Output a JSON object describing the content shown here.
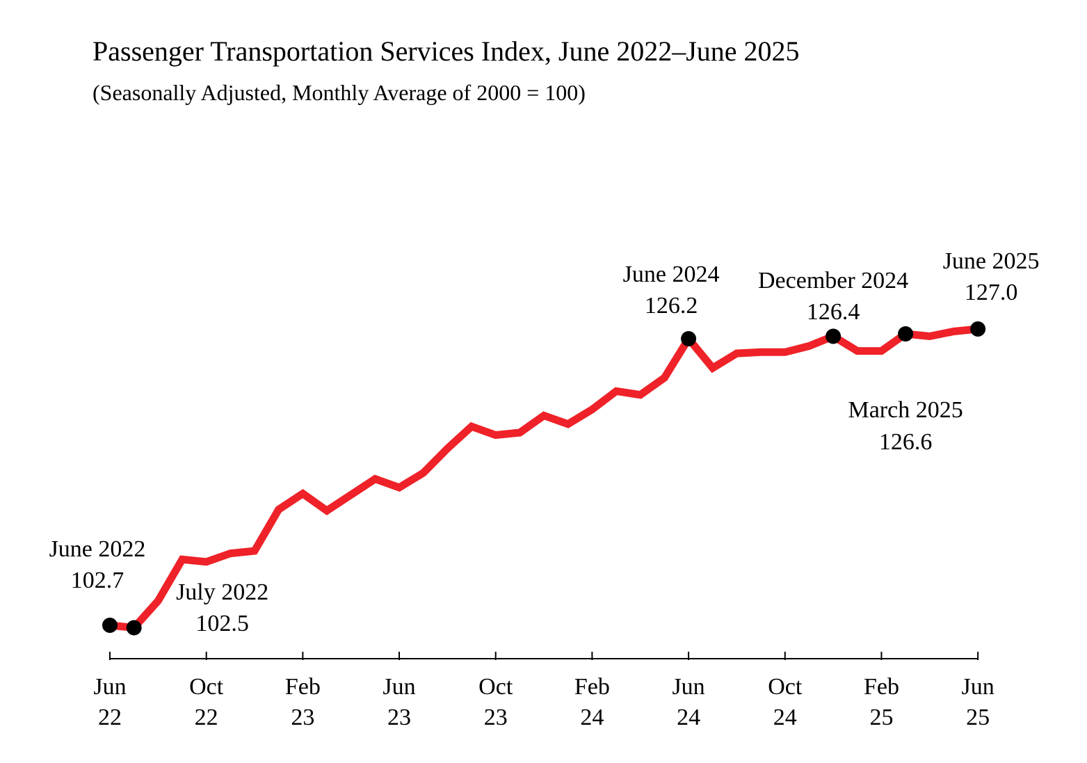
{
  "chart_data": {
    "type": "line",
    "title": "Passenger Transportation Services Index, June 2022–June 2025",
    "subtitle": "(Seasonally Adjusted, Monthly Average of 2000 = 100)",
    "xlabel": "",
    "ylabel": "",
    "ylim": [
      101.5,
      128.5
    ],
    "grid": false,
    "line_color": "#ee2228",
    "marker_color": "#000000",
    "x": [
      "Jun 22",
      "Jul 22",
      "Aug 22",
      "Sep 22",
      "Oct 22",
      "Nov 22",
      "Dec 22",
      "Jan 23",
      "Feb 23",
      "Mar 23",
      "Apr 23",
      "May 23",
      "Jun 23",
      "Jul 23",
      "Aug 23",
      "Sep 23",
      "Oct 23",
      "Nov 23",
      "Dec 23",
      "Jan 24",
      "Feb 24",
      "Mar 24",
      "Apr 24",
      "May 24",
      "Jun 24",
      "Jul 24",
      "Aug 24",
      "Sep 24",
      "Oct 24",
      "Nov 24",
      "Dec 24",
      "Jan 25",
      "Feb 25",
      "Mar 25",
      "Apr 25",
      "May 25",
      "Jun 25"
    ],
    "values": [
      102.7,
      102.5,
      104.7,
      108.1,
      107.9,
      108.6,
      108.8,
      112.2,
      113.5,
      112.1,
      113.4,
      114.7,
      114.0,
      115.2,
      117.2,
      119.0,
      118.3,
      118.5,
      119.9,
      119.2,
      120.4,
      121.9,
      121.6,
      123.0,
      126.2,
      123.8,
      125.0,
      125.1,
      125.1,
      125.6,
      126.4,
      125.2,
      125.2,
      126.6,
      126.4,
      126.8,
      127.0
    ],
    "tick_labels": [
      {
        "month": "Jun",
        "year": "22",
        "index": 0
      },
      {
        "month": "Oct",
        "year": "22",
        "index": 4
      },
      {
        "month": "Feb",
        "year": "23",
        "index": 8
      },
      {
        "month": "Jun",
        "year": "23",
        "index": 12
      },
      {
        "month": "Oct",
        "year": "23",
        "index": 16
      },
      {
        "month": "Feb",
        "year": "24",
        "index": 20
      },
      {
        "month": "Jun",
        "year": "24",
        "index": 24
      },
      {
        "month": "Oct",
        "year": "24",
        "index": 28
      },
      {
        "month": "Feb",
        "year": "25",
        "index": 32
      },
      {
        "month": "Jun",
        "year": "25",
        "index": 36
      }
    ],
    "annotations": [
      {
        "index": 0,
        "label": "June 2022",
        "value_text": "102.7"
      },
      {
        "index": 1,
        "label": "July 2022",
        "value_text": "102.5"
      },
      {
        "index": 24,
        "label": "June 2024",
        "value_text": "126.2"
      },
      {
        "index": 30,
        "label": "December 2024",
        "value_text": "126.4"
      },
      {
        "index": 33,
        "label": "March 2025",
        "value_text": "126.6"
      },
      {
        "index": 36,
        "label": "June 2025",
        "value_text": "127.0"
      }
    ]
  }
}
